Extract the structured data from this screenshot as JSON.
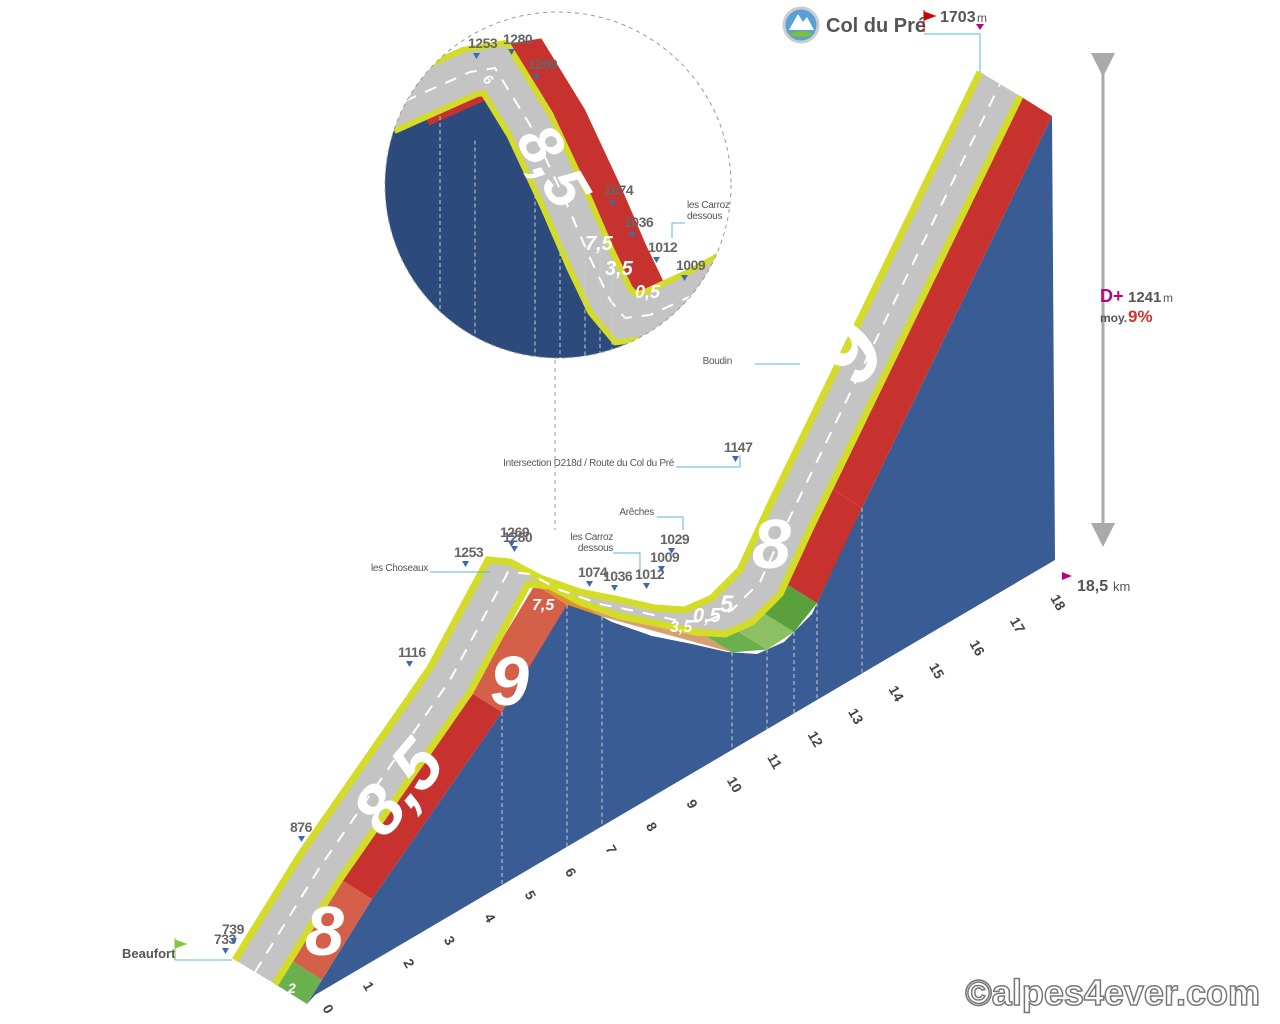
{
  "summit": {
    "name": "Col du Pré",
    "altitude": 1703,
    "unit": "m"
  },
  "start": {
    "name": "Beaufort"
  },
  "summary": {
    "gain_label": "D+",
    "gain": 1241,
    "gain_unit": "m",
    "average_label": "moy.",
    "average": "9%"
  },
  "distance": {
    "value": "18,5",
    "unit": "km"
  },
  "km_ticks": [
    0,
    1,
    2,
    3,
    4,
    5,
    6,
    7,
    8,
    9,
    10,
    11,
    12,
    13,
    14,
    15,
    16,
    17,
    18
  ],
  "altitudes": [
    733,
    739,
    876,
    1116,
    1253,
    1280,
    1269,
    1074,
    1036,
    1012,
    1009,
    1029,
    1147
  ],
  "gradients": [
    "2",
    "8",
    "8,5",
    "9",
    "7,5",
    "3,5",
    "0,5",
    "5",
    "8",
    "9"
  ],
  "places": [
    {
      "lines": [
        "les Choseaux"
      ]
    },
    {
      "lines": [
        "les Carroz",
        "dessous"
      ]
    },
    {
      "lines": [
        "Arêches"
      ]
    },
    {
      "lines": [
        "Intersection D218d / Route du Col du Pré"
      ]
    },
    {
      "lines": [
        "Boudin"
      ]
    }
  ],
  "zoom": {
    "altitudes": [
      1253,
      1280,
      1269,
      1074,
      1036,
      1012,
      1009
    ],
    "gradients": [
      "6",
      "8,5",
      "7,5",
      "3,5",
      "0,5"
    ],
    "places": [
      {
        "lines": [
          "les Carroz",
          "dessous"
        ]
      }
    ]
  },
  "watermark": "©alpes4ever.com"
}
